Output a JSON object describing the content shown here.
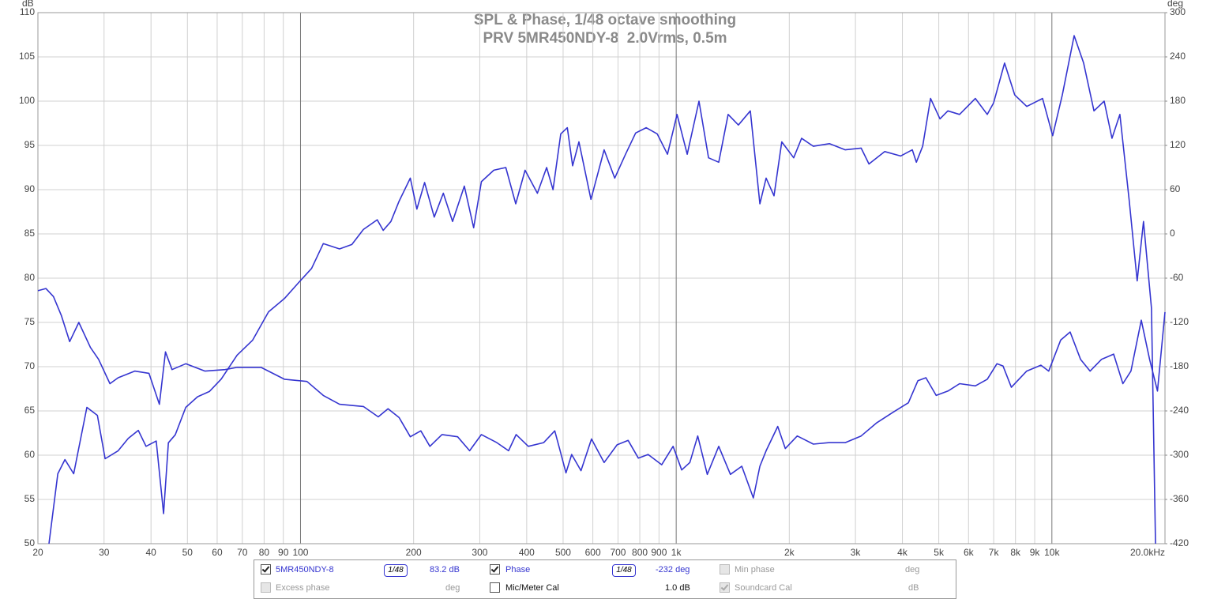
{
  "chart_data": {
    "type": "line",
    "title": "SPL & Phase, 1/48 octave smoothing",
    "subtitle": "PRV 5MR450NDY-8  2.0Vrms, 0.5m",
    "xscale": "log",
    "xlim": [
      20,
      20000
    ],
    "xticks": [
      20,
      30,
      40,
      50,
      60,
      70,
      80,
      90,
      100,
      200,
      300,
      400,
      500,
      600,
      700,
      800,
      900,
      {
        "value": 1000,
        "label": "1k"
      },
      {
        "value": 2000,
        "label": "2k"
      },
      {
        "value": 3000,
        "label": "3k"
      },
      {
        "value": 4000,
        "label": "4k"
      },
      {
        "value": 5000,
        "label": "5k"
      },
      {
        "value": 6000,
        "label": "6k"
      },
      {
        "value": 7000,
        "label": "7k"
      },
      {
        "value": 8000,
        "label": "8k"
      },
      {
        "value": 9000,
        "label": "9k"
      },
      {
        "value": 10000,
        "label": "10k"
      },
      {
        "value": 20000,
        "label": "20.0kHz"
      }
    ],
    "ylabel": "dB",
    "ylim": [
      50,
      110
    ],
    "yticks": [
      50,
      55,
      60,
      65,
      70,
      75,
      80,
      85,
      90,
      95,
      100,
      105,
      110
    ],
    "y2label": "deg",
    "y2lim": [
      -420,
      300
    ],
    "y2ticks": [
      -420,
      -360,
      -300,
      -240,
      -180,
      -120,
      -60,
      0,
      60,
      120,
      180,
      240,
      300
    ],
    "grid": true,
    "series": [
      {
        "name": "5MR450NDY-8",
        "color": "#3535d0",
        "x": [
          21.4,
          22.6,
          23.6,
          24.9,
          27.0,
          28.8,
          30.2,
          32.7,
          34.8,
          37.0,
          38.8,
          41.3,
          43.2,
          44.5,
          46.4,
          49.5,
          53.2,
          57.2,
          61.5,
          67.8,
          74.6,
          82.2,
          90.6,
          99.8,
          107,
          115,
          127,
          137,
          147,
          160,
          166,
          174,
          183,
          196,
          204,
          214,
          227,
          240,
          254,
          273,
          289,
          303,
          327,
          352,
          374,
          396,
          427,
          452,
          470,
          493,
          513,
          530,
          551,
          593,
          643,
          686,
          733,
          780,
          832,
          890,
          948,
          1005,
          1070,
          1150,
          1219,
          1298,
          1375,
          1464,
          1575,
          1670,
          1735,
          1821,
          1910,
          2055,
          2157,
          2318,
          2557,
          2819,
          3106,
          3259,
          3591,
          3957,
          4251,
          4357,
          4530,
          4754,
          5036,
          5287,
          5678,
          6256,
          6731,
          6997,
          7484,
          7965,
          8573,
          9443,
          10050,
          10660,
          11460,
          12150,
          12940,
          13780,
          14450,
          15170,
          16070,
          16870,
          17530,
          18410,
          18870
        ],
        "values": [
          50,
          57.9,
          59.5,
          57.9,
          65.4,
          64.5,
          59.6,
          60.5,
          61.9,
          62.8,
          61.0,
          61.6,
          53.4,
          61.4,
          62.3,
          65.4,
          66.6,
          67.2,
          68.6,
          71.3,
          73.0,
          76.2,
          77.7,
          79.7,
          81.1,
          83.9,
          83.3,
          83.8,
          85.5,
          86.6,
          85.4,
          86.4,
          88.7,
          91.3,
          87.8,
          90.8,
          86.9,
          89.6,
          86.4,
          90.4,
          85.7,
          90.9,
          92.2,
          92.5,
          88.4,
          92.2,
          89.6,
          92.5,
          90.0,
          96.3,
          97.0,
          92.7,
          95.4,
          88.9,
          94.5,
          91.3,
          94.0,
          96.4,
          97.0,
          96.3,
          94.0,
          98.5,
          94.0,
          100,
          93.6,
          93.1,
          98.5,
          97.3,
          98.9,
          88.4,
          91.3,
          89.3,
          95.4,
          93.6,
          95.8,
          94.9,
          95.2,
          94.5,
          94.7,
          92.9,
          94.3,
          93.8,
          94.5,
          93.1,
          94.9,
          100.3,
          98.0,
          98.9,
          98.5,
          100.3,
          98.5,
          99.8,
          104.3,
          100.7,
          99.4,
          100.3,
          96.1,
          100.7,
          107.4,
          104.3,
          98.9,
          100,
          95.8,
          98.5,
          88.7,
          79.7,
          86.4,
          76.6,
          50
        ]
      },
      {
        "name": "Phase",
        "color": "#3535d0",
        "axis": "y2",
        "x": [
          20,
          21,
          22,
          23.1,
          24.3,
          25.7,
          27.6,
          29.0,
          31.1,
          32.7,
          36.2,
          39.5,
          42.1,
          43.7,
          45.5,
          49.5,
          55.7,
          63.0,
          67.8,
          78.5,
          90.6,
          104,
          115,
          127,
          147,
          161,
          171,
          183,
          196,
          209,
          221,
          238,
          262,
          282,
          303,
          333,
          358,
          375,
          404,
          444,
          475,
          491,
          509,
          527,
          558,
          595,
          643,
          696,
          745,
          793,
          842,
          915,
          981,
          1034,
          1087,
          1141,
          1210,
          1298,
          1394,
          1495,
          1604,
          1670,
          1735,
          1863,
          1952,
          2100,
          2318,
          2557,
          2819,
          3106,
          3420,
          3770,
          4150,
          4400,
          4620,
          4920,
          5290,
          5680,
          6256,
          6730,
          7140,
          7410,
          7800,
          8570,
          9350,
          9810,
          10550,
          11180,
          11920,
          12640,
          13560,
          14600,
          15450,
          16230,
          17300,
          18200,
          19100,
          20000
        ],
        "values": [
          -77,
          -74,
          -85,
          -111,
          -146,
          -120,
          -154,
          -170,
          -203,
          -195,
          -186,
          -189,
          -231,
          -160,
          -184,
          -176,
          -186,
          -184,
          -181,
          -181,
          -197,
          -200,
          -219,
          -231,
          -234,
          -248,
          -237,
          -249,
          -275,
          -267,
          -288,
          -272,
          -275,
          -294,
          -272,
          -283,
          -294,
          -272,
          -288,
          -283,
          -267,
          -294,
          -324,
          -299,
          -321,
          -278,
          -310,
          -286,
          -280,
          -304,
          -299,
          -313,
          -288,
          -320,
          -310,
          -274,
          -326,
          -288,
          -326,
          -315,
          -358,
          -315,
          -294,
          -261,
          -291,
          -274,
          -285,
          -283,
          -283,
          -274,
          -256,
          -242,
          -229,
          -199,
          -195,
          -219,
          -213,
          -203,
          -206,
          -197,
          -176,
          -179,
          -208,
          -186,
          -178,
          -186,
          -144,
          -133,
          -170,
          -186,
          -170,
          -163,
          -203,
          -186,
          -117,
          -170,
          -213,
          -106
        ]
      }
    ]
  },
  "controls": {
    "items": [
      {
        "checked": true,
        "enabled": true,
        "smoothing": "1/48",
        "readout": "83.2 dB"
      },
      {
        "checked": false,
        "enabled": false,
        "label": "Excess phase",
        "readout": "deg"
      },
      {
        "checked": true,
        "enabled": true,
        "smoothing": "1/48",
        "readout": "-232 deg"
      },
      {
        "checked": false,
        "enabled": true,
        "label": "Mic/Meter Cal",
        "readout": "1.0 dB"
      },
      {
        "checked": false,
        "enabled": false,
        "label": "Min phase",
        "readout": "deg"
      },
      {
        "checked": true,
        "enabled": false,
        "label": "Soundcard Cal",
        "readout": "dB"
      }
    ]
  }
}
